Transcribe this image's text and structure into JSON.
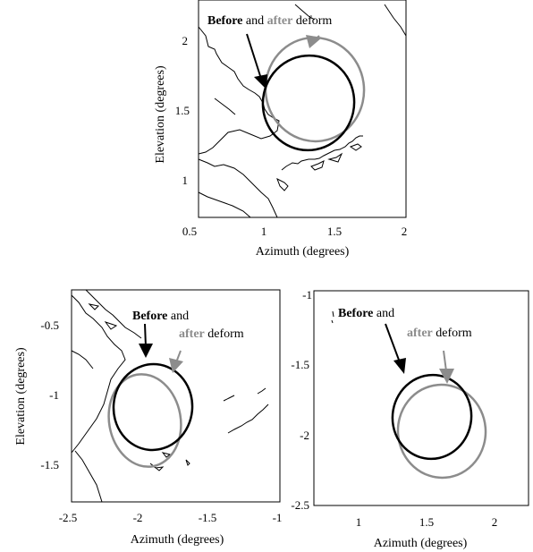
{
  "colors": {
    "before": "#000000",
    "after": "#8c8c8c",
    "coast": "#000000"
  },
  "panels": [
    {
      "y_axis_label": "Elevation (degrees)",
      "x_axis_label": "Azimuth (degrees)",
      "x_ticks": [
        "0.5",
        "1",
        "1.5",
        "2"
      ],
      "y_ticks": [
        "2",
        "1.5",
        "1"
      ],
      "annotation": {
        "before_word": "Before",
        "and_word": " and ",
        "after_word": "after",
        "deform_word": " deform"
      }
    },
    {
      "y_axis_label": "Elevation (degrees)",
      "x_axis_label": "Azimuth (degrees)",
      "x_ticks": [
        "-2.5",
        "-2",
        "-1.5",
        "-1"
      ],
      "y_ticks": [
        "-0.5",
        "-1",
        "-1.5"
      ],
      "annotation": {
        "before_word": "Before",
        "and_word": " and",
        "after_word": "after",
        "deform_word": " deform"
      }
    },
    {
      "y_axis_label": "",
      "x_axis_label": "Azimuth (degrees)",
      "x_ticks": [
        "1",
        "1.5",
        "2"
      ],
      "y_ticks": [
        "-1",
        "-1.5",
        "-2",
        "-2.5"
      ],
      "annotation": {
        "before_word": "Before",
        "and_word": " and",
        "after_word": "after",
        "deform_word": " deform"
      }
    }
  ]
}
